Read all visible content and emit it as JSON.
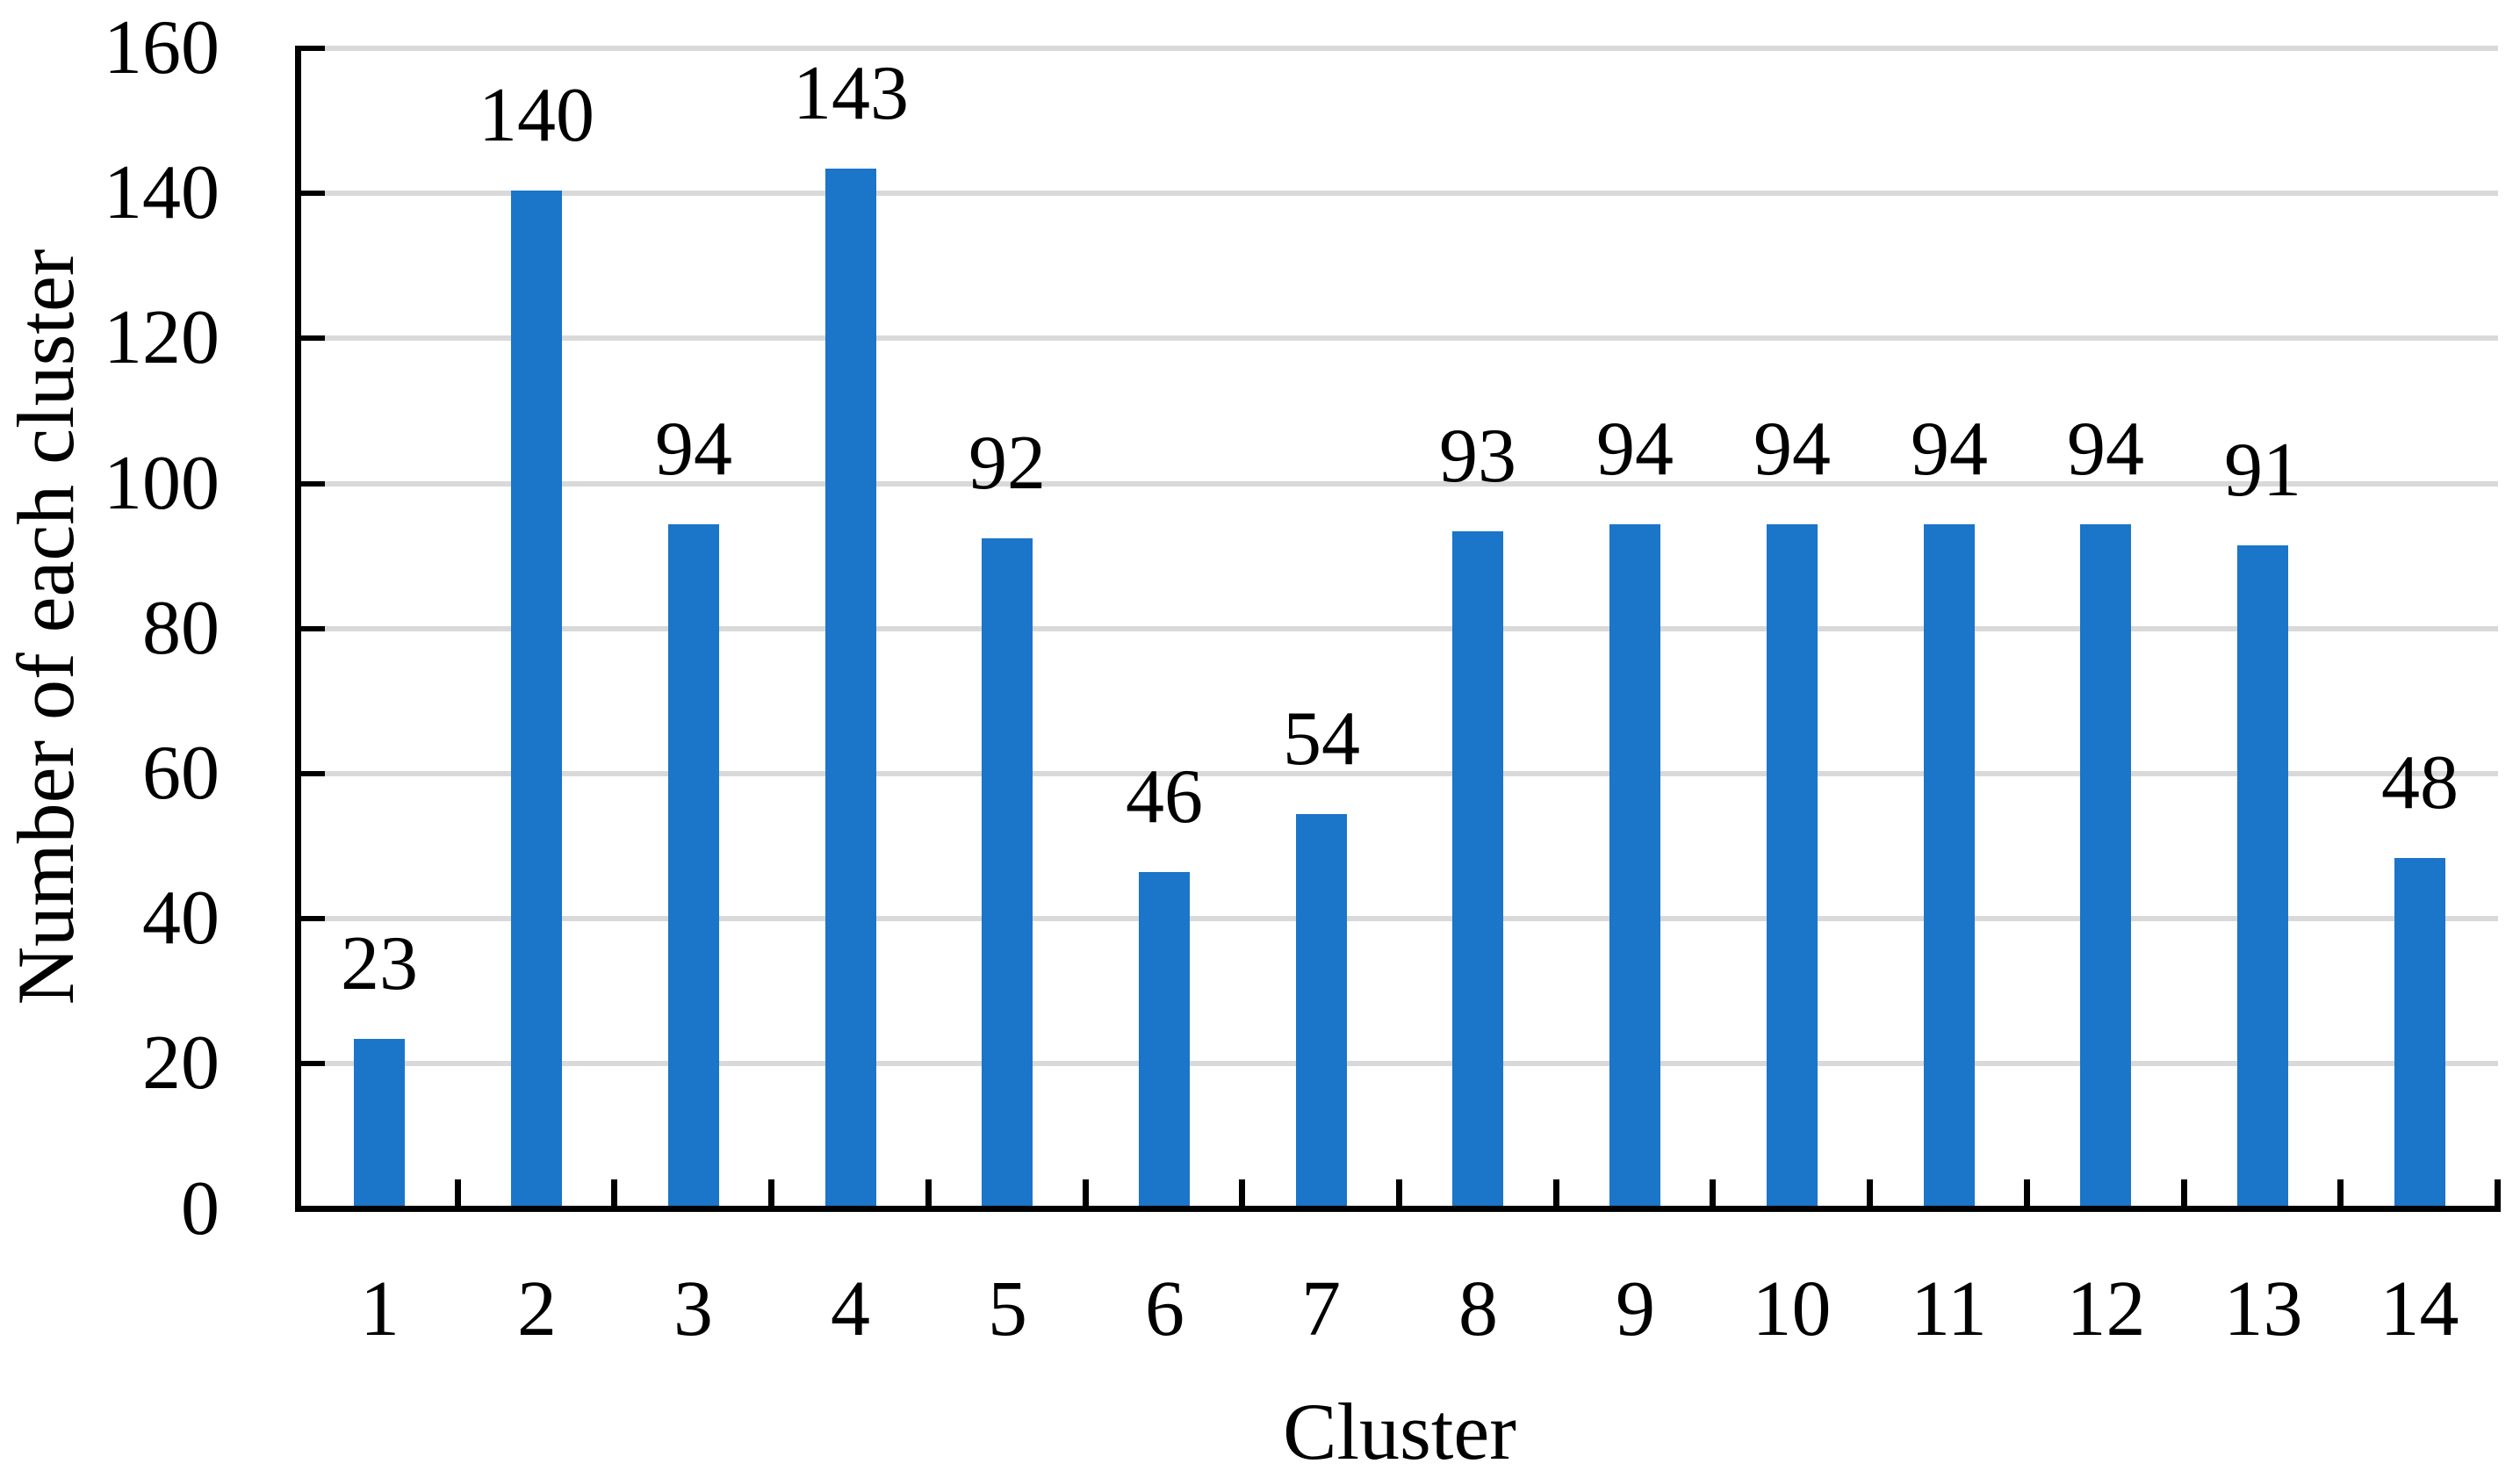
{
  "chart_data": {
    "type": "bar",
    "title": "",
    "xlabel": "Cluster",
    "ylabel": "Number of each cluster",
    "categories": [
      "1",
      "2",
      "3",
      "4",
      "5",
      "6",
      "7",
      "8",
      "9",
      "10",
      "11",
      "12",
      "13",
      "14"
    ],
    "values": [
      23,
      140,
      94,
      143,
      92,
      46,
      54,
      93,
      94,
      94,
      94,
      94,
      91,
      48
    ],
    "data_labels_shown": true,
    "ylim": [
      0,
      160
    ],
    "yticks": [
      0,
      20,
      40,
      60,
      80,
      100,
      120,
      140,
      160
    ],
    "grid": "horizontal",
    "legend_position": "none",
    "bar_color": "#1B75C8",
    "gridline_color": "#D9D9D9",
    "axis_color": "#000000",
    "text_color": "#000000",
    "background_color": "#FFFFFF"
  }
}
